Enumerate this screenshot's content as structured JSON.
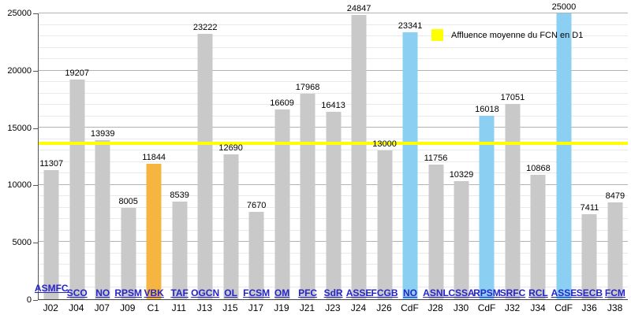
{
  "chart_data": {
    "type": "bar",
    "title": "",
    "xlabel": "",
    "ylabel": "",
    "ylim": [
      0,
      25000
    ],
    "y_ticks": [
      0,
      5000,
      10000,
      15000,
      20000,
      25000
    ],
    "minor_gridline_step": 1000,
    "major_gridline_step": 5000,
    "grid": "on",
    "legend": [
      {
        "label": "Affluence moyenne du FCN en D1",
        "color": "#ffff00",
        "position": "top-right"
      }
    ],
    "average_line": {
      "label": "Affluence moyenne du FCN en D1",
      "value": 13648,
      "color": "#ffff00"
    },
    "bar_colors": {
      "D1": "#c9c9c9",
      "C1": "#f6b440",
      "CdF": "#8bd0f3"
    },
    "link_color": "#2525c9",
    "bars": [
      {
        "matchday": "J02",
        "opponent": "ASMFC",
        "value": 11307,
        "competition": "D1"
      },
      {
        "matchday": "J04",
        "opponent": "SCO",
        "value": 19207,
        "competition": "D1"
      },
      {
        "matchday": "J07",
        "opponent": "NO",
        "value": 13939,
        "competition": "D1"
      },
      {
        "matchday": "J09",
        "opponent": "RPSM",
        "value": 8005,
        "competition": "D1"
      },
      {
        "matchday": "C1",
        "opponent": "VBK",
        "value": 11844,
        "competition": "C1"
      },
      {
        "matchday": "J11",
        "opponent": "TAF",
        "value": 8539,
        "competition": "D1"
      },
      {
        "matchday": "J13",
        "opponent": "OGCN",
        "value": 23222,
        "competition": "D1"
      },
      {
        "matchday": "J15",
        "opponent": "OL",
        "value": 12690,
        "competition": "D1"
      },
      {
        "matchday": "J17",
        "opponent": "FCSM",
        "value": 7670,
        "competition": "D1"
      },
      {
        "matchday": "J19",
        "opponent": "OM",
        "value": 16609,
        "competition": "D1"
      },
      {
        "matchday": "J21",
        "opponent": "PFC",
        "value": 17968,
        "competition": "D1"
      },
      {
        "matchday": "J23",
        "opponent": "SdR",
        "value": 16413,
        "competition": "D1"
      },
      {
        "matchday": "J24",
        "opponent": "ASSE",
        "value": 24847,
        "competition": "D1"
      },
      {
        "matchday": "J26",
        "opponent": "FCGB",
        "value": 13000,
        "competition": "D1"
      },
      {
        "matchday": "CdF",
        "opponent": "NO",
        "value": 23341,
        "competition": "CdF"
      },
      {
        "matchday": "J28",
        "opponent": "ASNL",
        "value": 11756,
        "competition": "D1"
      },
      {
        "matchday": "J30",
        "opponent": "CSSA",
        "value": 10329,
        "competition": "D1"
      },
      {
        "matchday": "CdF",
        "opponent": "RPSM",
        "value": 16018,
        "competition": "CdF"
      },
      {
        "matchday": "J32",
        "opponent": "SRFC",
        "value": 17051,
        "competition": "D1"
      },
      {
        "matchday": "J34",
        "opponent": "RCL",
        "value": 10868,
        "competition": "D1"
      },
      {
        "matchday": "CdF",
        "opponent": "ASSE",
        "value": 25000,
        "competition": "CdF"
      },
      {
        "matchday": "J36",
        "opponent": "SECB",
        "value": 7411,
        "competition": "D1"
      },
      {
        "matchday": "J38",
        "opponent": "FCM",
        "value": 8479,
        "competition": "D1"
      }
    ]
  }
}
